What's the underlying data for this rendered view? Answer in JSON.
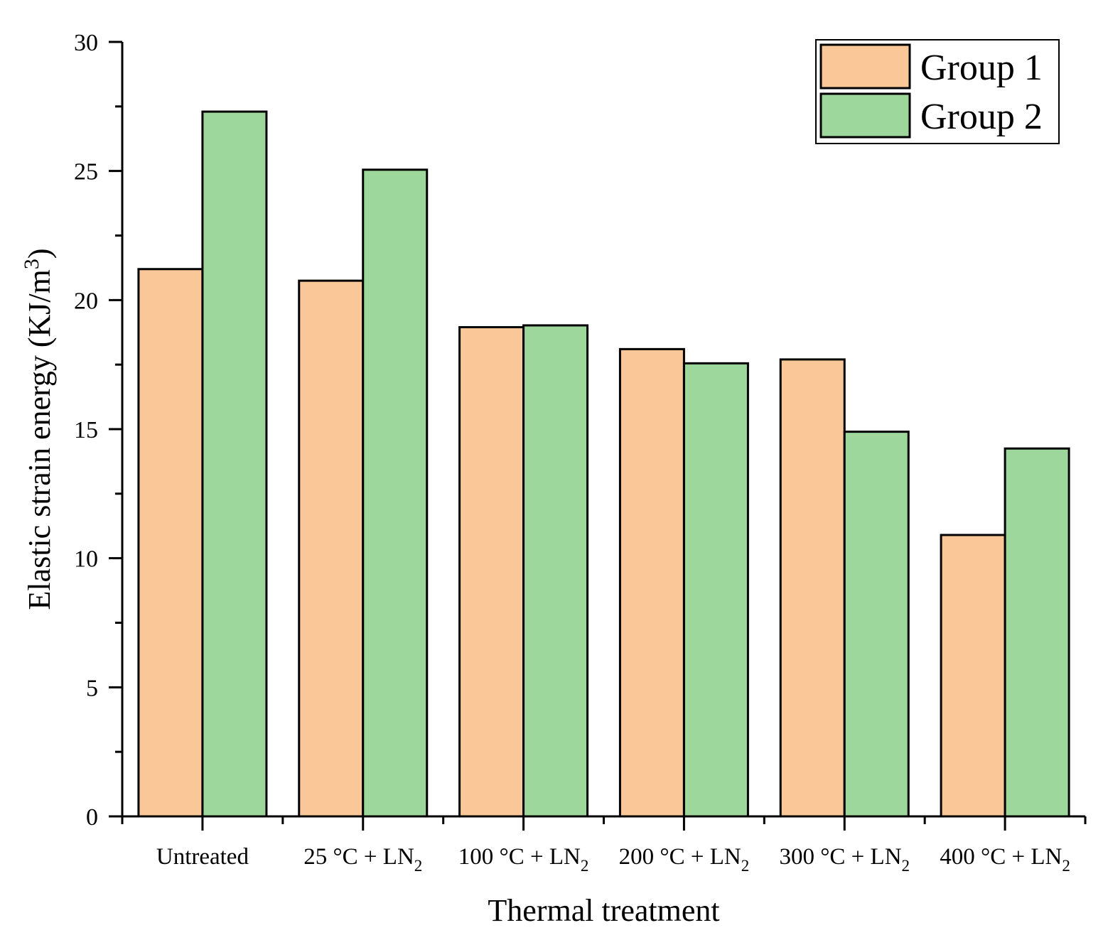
{
  "chart_data": {
    "type": "bar",
    "title": "",
    "xlabel": "Thermal treatment",
    "ylabel": "Elastic strain energy (KJ/m3)",
    "ylabel_parts": {
      "main": "Elastic strain energy (KJ/m",
      "sup": "3",
      "end": ")"
    },
    "categories": [
      {
        "main": "Untreated",
        "sub": ""
      },
      {
        "main": "25 °C + LN",
        "sub": "2"
      },
      {
        "main": "100 °C + LN",
        "sub": "2"
      },
      {
        "main": "200 °C + LN",
        "sub": "2"
      },
      {
        "main": "300 °C + LN",
        "sub": "2"
      },
      {
        "main": "400 °C + LN",
        "sub": "2"
      }
    ],
    "series": [
      {
        "name": "Group 1",
        "color": "#FAC898",
        "values": [
          21.2,
          20.75,
          18.95,
          18.1,
          17.7,
          10.9
        ]
      },
      {
        "name": "Group 2",
        "color": "#9ED79C",
        "values": [
          27.3,
          25.05,
          19.02,
          17.55,
          14.9,
          14.25
        ]
      }
    ],
    "ylim": [
      0,
      30
    ],
    "yticks": [
      0,
      5,
      10,
      15,
      20,
      25,
      30
    ],
    "grid": false,
    "legend_position": "top-right"
  }
}
